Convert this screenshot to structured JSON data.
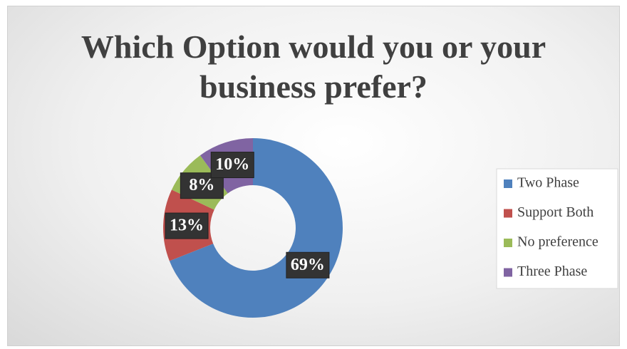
{
  "chart_data": {
    "type": "donut",
    "title": "Which Option would you or your business prefer?",
    "categories": [
      "Two Phase",
      "Support Both",
      "No preference",
      "Three Phase"
    ],
    "values": [
      69,
      13,
      8,
      10
    ],
    "value_labels": [
      "69%",
      "13%",
      "8%",
      "10%"
    ],
    "colors": [
      "#4f81bd",
      "#c0504d",
      "#9bbb59",
      "#8064a2"
    ],
    "legend": "right"
  }
}
